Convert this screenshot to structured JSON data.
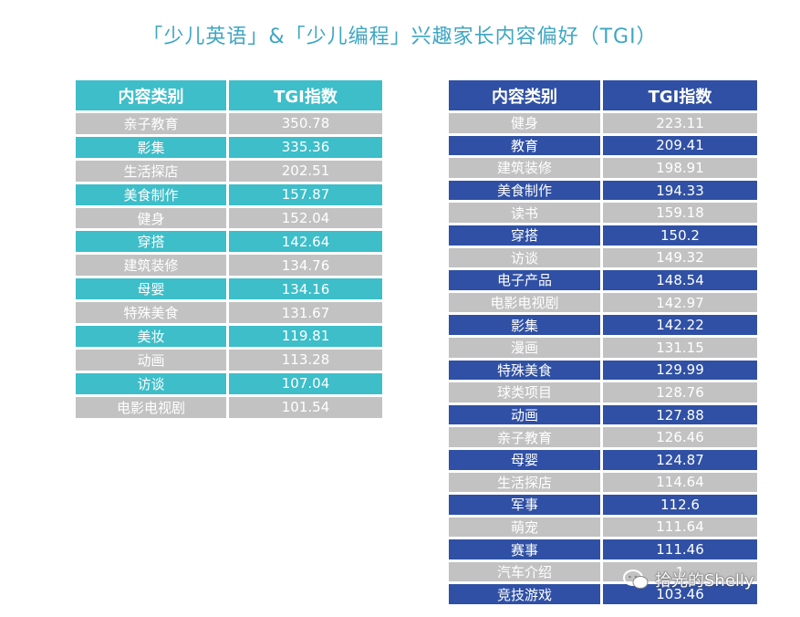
{
  "title": "「少儿英语」&「少儿编程」兴趣家长内容偏好（TGI）",
  "colors": {
    "title": "#3ea6c4",
    "left_accent": "#3dbec9",
    "right_accent": "#2f50a4",
    "gray_row": "#c2c2c2"
  },
  "chart_data": [
    {
      "type": "table",
      "columns": [
        "内容类别",
        "TGI指数"
      ],
      "rows": [
        [
          "亲子教育",
          "350.78"
        ],
        [
          "影集",
          "335.36"
        ],
        [
          "生活探店",
          "202.51"
        ],
        [
          "美食制作",
          "157.87"
        ],
        [
          "健身",
          "152.04"
        ],
        [
          "穿搭",
          "142.64"
        ],
        [
          "建筑装修",
          "134.76"
        ],
        [
          "母婴",
          "134.16"
        ],
        [
          "特殊美食",
          "131.67"
        ],
        [
          "美妆",
          "119.81"
        ],
        [
          "动画",
          "113.28"
        ],
        [
          "访谈",
          "107.04"
        ],
        [
          "电影电视剧",
          "101.54"
        ]
      ]
    },
    {
      "type": "table",
      "columns": [
        "内容类别",
        "TGI指数"
      ],
      "rows": [
        [
          "健身",
          "223.11"
        ],
        [
          "教育",
          "209.41"
        ],
        [
          "建筑装修",
          "198.91"
        ],
        [
          "美食制作",
          "194.33"
        ],
        [
          "读书",
          "159.18"
        ],
        [
          "穿搭",
          "150.2"
        ],
        [
          "访谈",
          "149.32"
        ],
        [
          "电子产品",
          "148.54"
        ],
        [
          "电影电视剧",
          "142.97"
        ],
        [
          "影集",
          "142.22"
        ],
        [
          "漫画",
          "131.15"
        ],
        [
          "特殊美食",
          "129.99"
        ],
        [
          "球类项目",
          "128.76"
        ],
        [
          "动画",
          "127.88"
        ],
        [
          "亲子教育",
          "126.46"
        ],
        [
          "母婴",
          "124.87"
        ],
        [
          "生活探店",
          "114.64"
        ],
        [
          "军事",
          "112.6"
        ],
        [
          "萌宠",
          "111.64"
        ],
        [
          "赛事",
          "111.46"
        ],
        [
          "汽车介绍",
          "1"
        ],
        [
          "竞技游戏",
          "103.46"
        ]
      ]
    }
  ],
  "watermark": {
    "text": "拾光的Shelly",
    "icon": "wechat-icon"
  }
}
